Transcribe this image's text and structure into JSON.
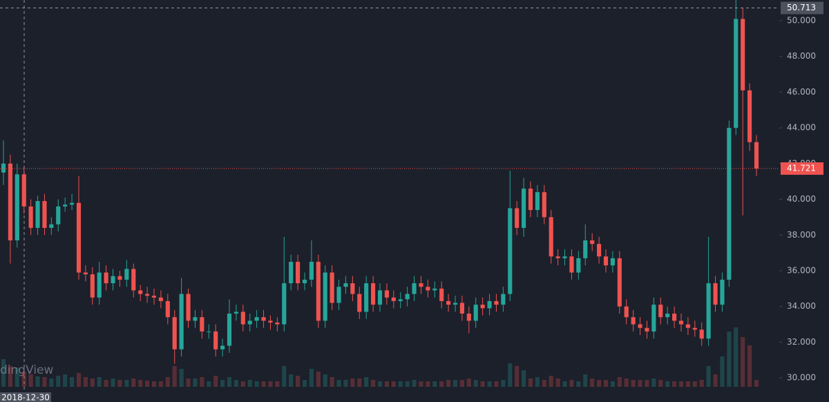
{
  "chart_data": {
    "type": "candlestick",
    "up_color": "#26a69a",
    "down_color": "#ef5350",
    "ylim": [
      28.65,
      51.16
    ],
    "yticks": [
      {
        "value": 30,
        "label": "30.000"
      },
      {
        "value": 32,
        "label": "32.000"
      },
      {
        "value": 34,
        "label": "34.000"
      },
      {
        "value": 36,
        "label": "36.000"
      },
      {
        "value": 38,
        "label": "38.000"
      },
      {
        "value": 40,
        "label": "40.000"
      },
      {
        "value": 42,
        "label": "42.000"
      },
      {
        "value": 44,
        "label": "44.000"
      },
      {
        "value": 46,
        "label": "46.000"
      },
      {
        "value": 48,
        "label": "48.000"
      },
      {
        "value": 50,
        "label": "50.000"
      }
    ],
    "open": [
      41.5,
      42.0,
      37.7,
      41.4,
      39.6,
      38.4,
      39.9,
      38.4,
      38.6,
      39.6,
      39.7,
      39.8,
      35.9,
      35.8,
      34.5,
      35.9,
      35.3,
      35.7,
      35.5,
      36.1,
      34.9,
      34.7,
      34.6,
      34.5,
      34.3,
      33.4,
      31.6,
      34.7,
      33.2,
      33.4,
      32.6,
      32.6,
      31.6,
      31.8,
      33.6,
      33.7,
      33.0,
      33.2,
      33.4,
      33.2,
      33.1,
      33.0,
      35.3,
      36.5,
      35.3,
      35.5,
      36.5,
      33.2,
      35.9,
      34.2,
      35.1,
      35.3,
      34.7,
      33.7,
      35.3,
      34.1,
      34.9,
      34.5,
      34.3,
      34.4,
      34.7,
      35.3,
      35.1,
      34.9,
      35.0,
      34.3,
      34.1,
      34.2,
      33.6,
      33.2,
      34.1,
      33.9,
      34.3,
      34.1,
      34.7,
      39.5,
      38.4,
      40.6,
      39.4,
      40.4,
      39.0,
      36.8,
      36.7,
      36.8,
      35.9,
      36.7,
      37.7,
      37.5,
      36.8,
      36.3,
      36.7,
      34.0,
      33.4,
      33.0,
      32.8,
      32.6,
      34.1,
      33.4,
      33.6,
      33.2,
      33.0,
      32.8,
      32.7,
      32.2,
      35.3,
      34.1,
      35.5,
      44.0,
      50.1,
      46.1,
      43.2
    ],
    "high": [
      43.3,
      42.5,
      42.0,
      41.8,
      40.0,
      40.2,
      40.3,
      39.0,
      40.0,
      40.1,
      40.3,
      41.3,
      36.3,
      36.2,
      36.5,
      36.3,
      36.1,
      36.0,
      36.6,
      36.4,
      35.2,
      35.1,
      35.0,
      34.9,
      34.7,
      33.8,
      35.6,
      35.0,
      33.8,
      33.8,
      33.0,
      33.0,
      32.2,
      34.4,
      34.1,
      34.1,
      33.6,
      33.8,
      33.8,
      33.5,
      33.4,
      37.9,
      36.9,
      36.9,
      35.9,
      37.7,
      36.9,
      36.3,
      36.3,
      35.5,
      35.7,
      35.7,
      35.1,
      35.7,
      35.7,
      35.3,
      35.3,
      34.9,
      34.8,
      35.1,
      35.7,
      35.7,
      35.5,
      35.4,
      35.4,
      34.7,
      34.6,
      34.6,
      34.0,
      34.5,
      34.5,
      34.7,
      34.7,
      35.1,
      41.6,
      39.9,
      41.2,
      41.0,
      40.8,
      40.8,
      39.4,
      37.2,
      37.2,
      37.2,
      37.1,
      38.6,
      38.1,
      37.9,
      37.2,
      37.1,
      37.1,
      34.4,
      33.8,
      33.4,
      33.2,
      34.5,
      34.5,
      34.0,
      34.0,
      33.6,
      33.4,
      33.2,
      33.1,
      37.9,
      35.7,
      35.9,
      44.4,
      51.2,
      50.7,
      46.5,
      43.6
    ],
    "low": [
      40.8,
      36.4,
      37.3,
      39.2,
      38.0,
      38.0,
      38.0,
      38.0,
      38.2,
      39.3,
      39.4,
      35.5,
      35.4,
      34.1,
      34.1,
      34.9,
      34.9,
      35.1,
      35.1,
      34.5,
      34.3,
      34.2,
      34.1,
      33.9,
      33.0,
      30.8,
      31.2,
      32.8,
      32.8,
      32.2,
      32.2,
      31.2,
      31.2,
      31.4,
      33.2,
      32.6,
      32.6,
      32.8,
      32.8,
      32.7,
      32.6,
      32.6,
      34.9,
      34.9,
      34.9,
      35.1,
      32.8,
      32.8,
      33.8,
      33.8,
      34.7,
      34.3,
      33.3,
      33.3,
      33.7,
      33.7,
      34.1,
      33.9,
      33.9,
      34.0,
      34.3,
      34.7,
      34.5,
      34.5,
      33.9,
      33.7,
      33.7,
      33.2,
      32.5,
      32.8,
      33.5,
      33.5,
      33.7,
      33.7,
      34.3,
      38.0,
      37.9,
      39.0,
      39.0,
      38.6,
      36.4,
      36.3,
      36.3,
      35.5,
      35.5,
      36.3,
      37.1,
      36.4,
      35.9,
      35.9,
      33.6,
      33.0,
      32.6,
      32.4,
      32.2,
      32.2,
      33.0,
      33.0,
      32.8,
      32.6,
      32.4,
      32.3,
      31.8,
      31.8,
      33.7,
      33.7,
      35.1,
      43.6,
      39.1,
      42.7,
      41.3
    ],
    "close": [
      42.0,
      37.7,
      41.4,
      39.6,
      38.4,
      39.9,
      38.4,
      38.6,
      39.6,
      39.7,
      39.8,
      35.9,
      35.8,
      34.5,
      35.9,
      35.3,
      35.7,
      35.5,
      36.1,
      34.9,
      34.7,
      34.6,
      34.5,
      34.3,
      33.4,
      31.6,
      34.7,
      33.2,
      33.4,
      32.6,
      32.6,
      31.6,
      31.8,
      33.6,
      33.7,
      33.0,
      33.2,
      33.4,
      33.2,
      33.1,
      33.0,
      35.3,
      36.5,
      35.3,
      35.5,
      36.5,
      33.2,
      35.9,
      34.2,
      35.1,
      35.3,
      34.7,
      33.7,
      35.3,
      34.1,
      34.9,
      34.5,
      34.3,
      34.4,
      34.7,
      35.3,
      35.1,
      34.9,
      35.0,
      34.3,
      34.1,
      34.2,
      33.6,
      33.2,
      34.1,
      33.9,
      34.3,
      34.1,
      34.7,
      39.5,
      38.4,
      40.6,
      39.4,
      40.4,
      39.0,
      36.8,
      36.7,
      36.8,
      35.9,
      36.7,
      37.7,
      37.5,
      36.8,
      36.3,
      36.7,
      34.0,
      33.4,
      33.0,
      32.8,
      32.6,
      34.1,
      33.4,
      33.6,
      33.2,
      33.0,
      32.8,
      32.7,
      32.2,
      35.3,
      34.1,
      35.5,
      44.0,
      50.1,
      46.1,
      43.2,
      41.721
    ],
    "volume": [
      40,
      30,
      28,
      22,
      18,
      15,
      14,
      12,
      16,
      18,
      14,
      20,
      14,
      12,
      14,
      10,
      12,
      10,
      10,
      12,
      10,
      9,
      8,
      8,
      14,
      30,
      26,
      12,
      12,
      14,
      8,
      16,
      10,
      14,
      10,
      8,
      10,
      8,
      8,
      8,
      8,
      30,
      18,
      16,
      10,
      26,
      22,
      18,
      14,
      10,
      10,
      12,
      12,
      14,
      10,
      8,
      8,
      8,
      8,
      8,
      10,
      8,
      8,
      8,
      8,
      10,
      10,
      10,
      12,
      10,
      8,
      8,
      8,
      10,
      34,
      30,
      24,
      12,
      14,
      10,
      16,
      12,
      8,
      10,
      8,
      18,
      12,
      10,
      10,
      8,
      14,
      12,
      10,
      10,
      10,
      12,
      10,
      8,
      8,
      8,
      8,
      8,
      10,
      30,
      18,
      44,
      80,
      86,
      72,
      60,
      10
    ],
    "vlim": [
      0,
      100
    ],
    "last_price": {
      "value": 41.721,
      "label": "41.721"
    },
    "crosshair_price": {
      "value": 50.713,
      "label": "50.713"
    },
    "crosshair_date": "2018-12-30",
    "watermark": "dingView"
  }
}
